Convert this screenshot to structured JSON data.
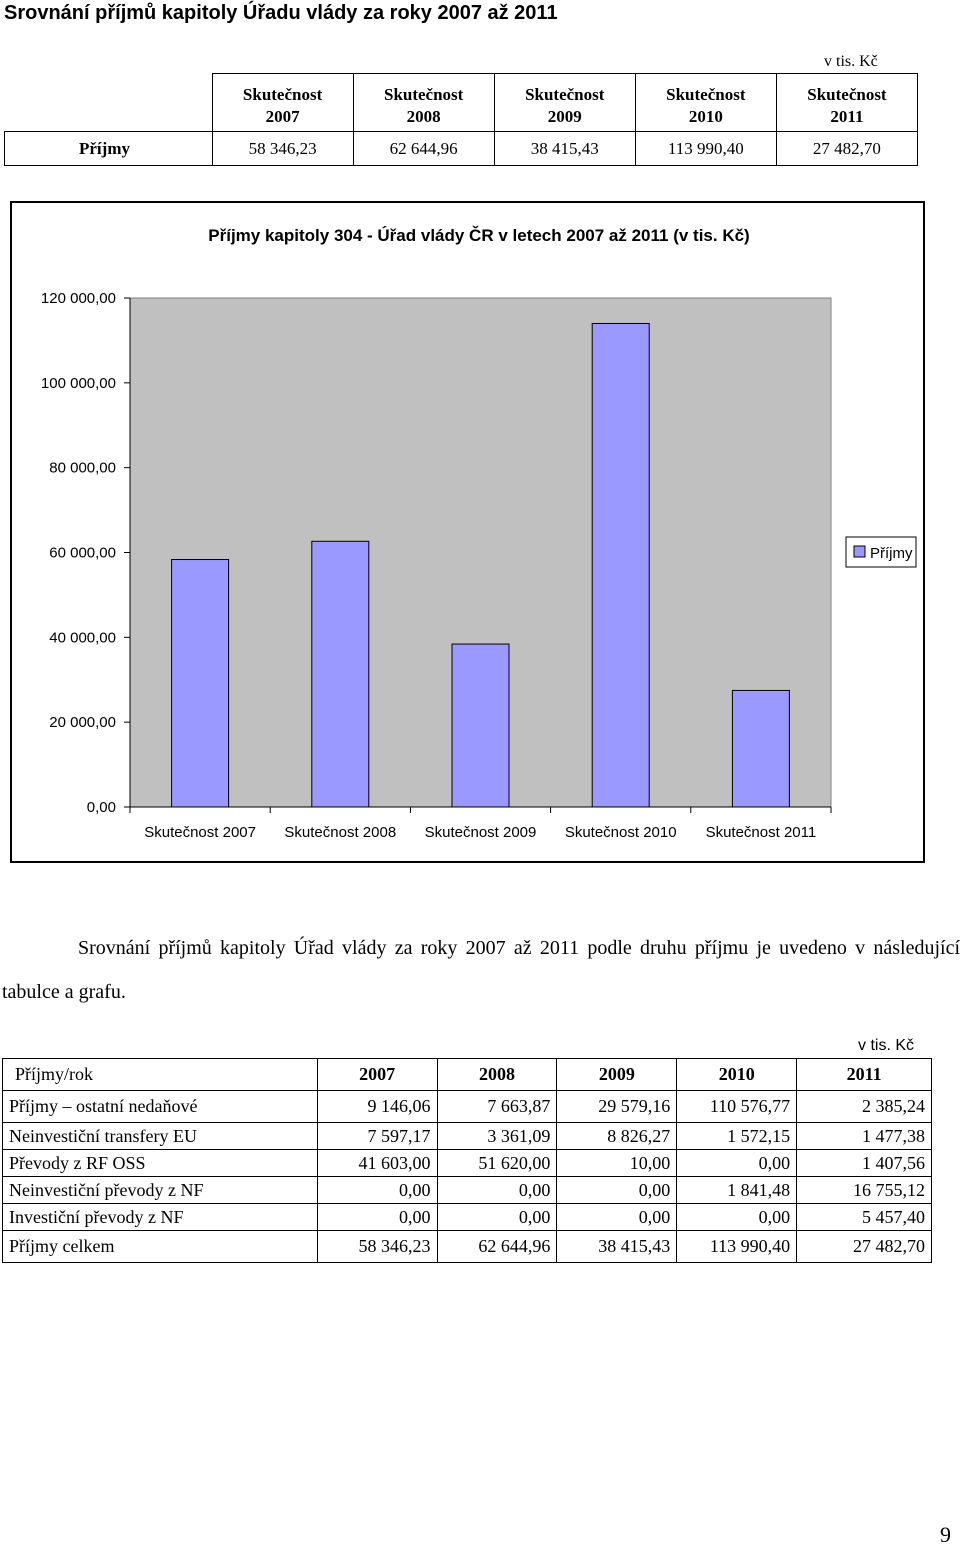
{
  "title": "Srovnání příjmů kapitoly Úřadu vlády za roky 2007 až 2011",
  "unit_label": "v tis. Kč",
  "summary_table": {
    "headers": [
      [
        "Skutečnost",
        "2007"
      ],
      [
        "Skutečnost",
        "2008"
      ],
      [
        "Skutečnost",
        "2009"
      ],
      [
        "Skutečnost",
        "2010"
      ],
      [
        "Skutečnost",
        "2011"
      ]
    ],
    "row_label": "Příjmy",
    "values": [
      "58 346,23",
      "62 644,96",
      "38 415,43",
      "113 990,40",
      "27 482,70"
    ]
  },
  "chart_data": {
    "type": "bar",
    "title": "Příjmy kapitoly 304 - Úřad vlády ČR v letech 2007 až 2011 (v tis. Kč)",
    "categories": [
      "Skutečnost 2007",
      "Skutečnost 2008",
      "Skutečnost 2009",
      "Skutečnost 2010",
      "Skutečnost 2011"
    ],
    "series": [
      {
        "name": "Příjmy",
        "values": [
          58346.23,
          62644.96,
          38415.43,
          113990.4,
          27482.7
        ]
      }
    ],
    "ylim": [
      0,
      120000
    ],
    "y_ticks": [
      0,
      20000,
      40000,
      60000,
      80000,
      100000,
      120000
    ],
    "y_tick_labels": [
      "0,00",
      "20 000,00",
      "40 000,00",
      "60 000,00",
      "80 000,00",
      "100 000,00",
      "120 000,00"
    ],
    "legend_position": "right",
    "plot_bg": "#c0c0c0",
    "bar_color": "#9999ff",
    "grid": false
  },
  "paragraph": "Srovnání příjmů kapitoly Úřad vlády za roky 2007 až 2011 podle druhu příjmu je uvedeno v následující tabulce a grafu.",
  "unit_label_2": "v tis. Kč",
  "detail_table": {
    "headers": [
      "Příjmy/rok",
      "2007",
      "2008",
      "2009",
      "2010",
      "2011"
    ],
    "rows": [
      [
        "Příjmy – ostatní nedaňové",
        "9 146,06",
        "7 663,87",
        "29 579,16",
        "110 576,77",
        "2 385,24"
      ],
      [
        "Neinvestiční transfery EU",
        "7 597,17",
        "3 361,09",
        "8 826,27",
        "1 572,15",
        "1 477,38"
      ],
      [
        "Převody z RF OSS",
        "41 603,00",
        "51 620,00",
        "10,00",
        "0,00",
        "1 407,56"
      ],
      [
        "Neinvestiční  převody z NF",
        "0,00",
        "0,00",
        "0,00",
        "1 841,48",
        "16 755,12"
      ],
      [
        "Investiční převody z NF",
        "0,00",
        "0,00",
        "0,00",
        "0,00",
        "5 457,40"
      ],
      [
        "Příjmy celkem",
        "58 346,23",
        "62 644,96",
        "38 415,43",
        "113 990,40",
        "27 482,70"
      ]
    ]
  },
  "page_number": "9"
}
